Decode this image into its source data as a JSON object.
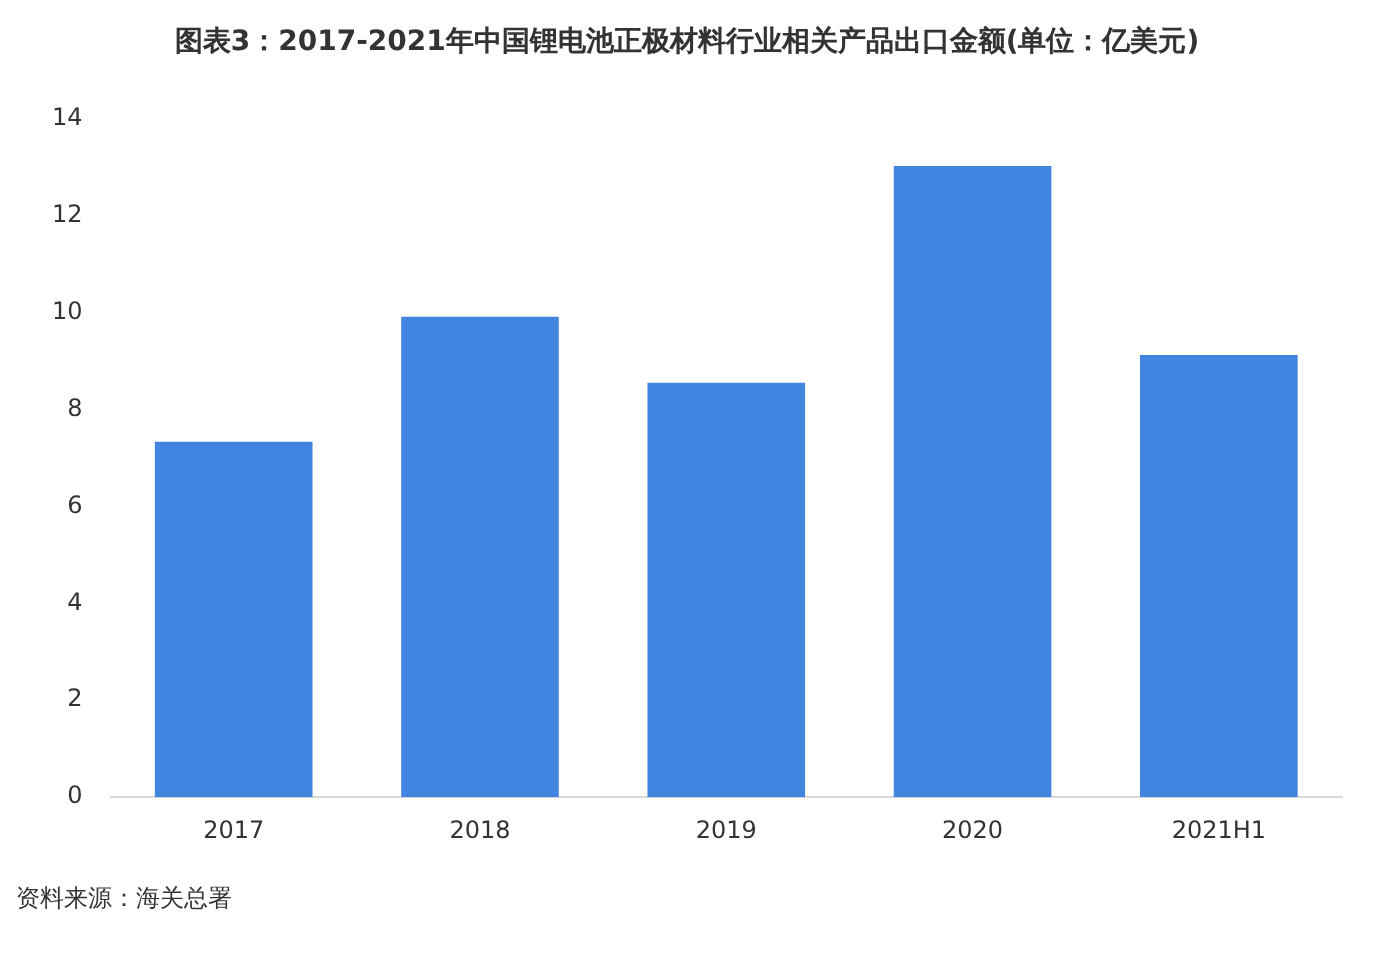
{
  "chart_data": {
    "type": "bar",
    "title": "图表3：2017-2021年中国锂电池正极材料行业相关产品出口金额(单位：亿美元)",
    "categories": [
      "2017",
      "2018",
      "2019",
      "2020",
      "2021H1"
    ],
    "values": [
      7.33,
      9.91,
      8.55,
      13.02,
      9.12
    ],
    "color": "#4285e0",
    "ylim": [
      0,
      14
    ],
    "yticks": [
      0,
      2,
      4,
      6,
      8,
      10,
      12,
      14
    ],
    "grid": false,
    "legend": false,
    "annotations": [
      "资料来源：海关总署"
    ]
  }
}
